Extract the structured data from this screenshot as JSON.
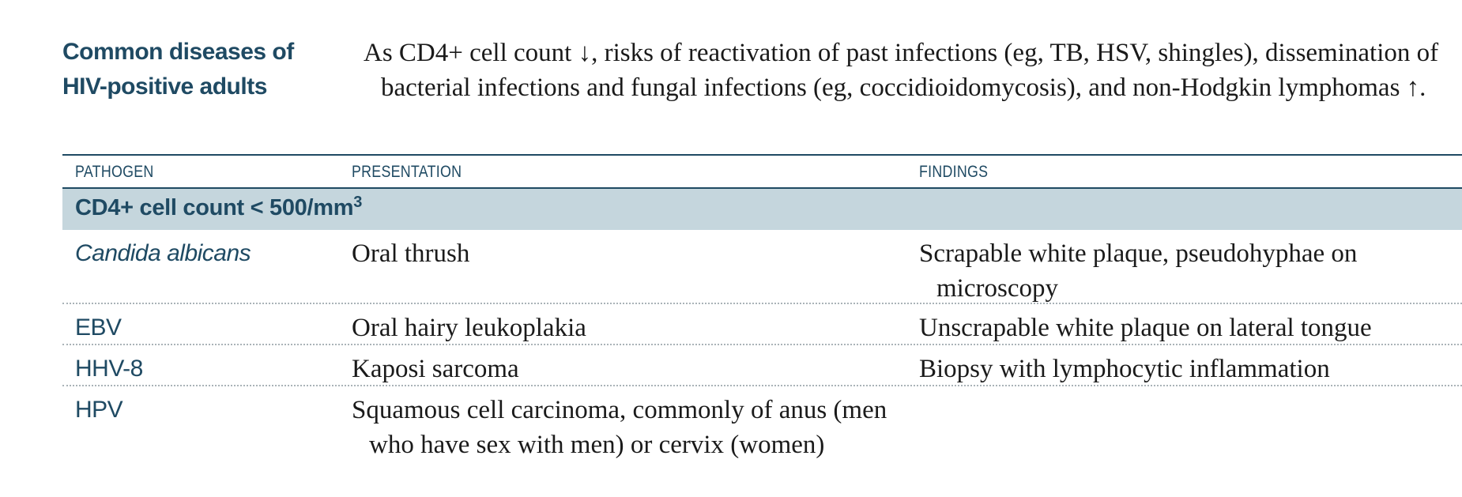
{
  "section": {
    "title": "Common diseases of HIV-positive adults",
    "intro": "As CD4+ cell count ↓, risks of reactivation of past infections (eg, TB, HSV, shingles), dissemination of bacterial infections and fungal infections (eg, coccidioidomycosis), and non-Hodgkin lymphomas ↑."
  },
  "table": {
    "headers": {
      "pathogen": "PATHOGEN",
      "presentation": "PRESENTATION",
      "findings": "FINDINGS"
    },
    "band": {
      "label": "CD4+ cell count < 500/mm",
      "superscript": "3"
    },
    "rows": [
      {
        "pathogen": "Candida albicans",
        "presentation": "Oral thrush",
        "findings": "Scrapable white plaque, pseudohyphae on microscopy"
      },
      {
        "pathogen": "EBV",
        "presentation": "Oral hairy leukoplakia",
        "findings": "Unscrapable white plaque on lateral tongue"
      },
      {
        "pathogen": "HHV-8",
        "presentation": "Kaposi sarcoma",
        "findings": "Biopsy with lymphocytic inflammation"
      },
      {
        "pathogen": "HPV",
        "presentation": "Squamous cell carcinoma, commonly of anus (men who have sex with men) or cervix (women)",
        "findings": ""
      }
    ]
  },
  "colors": {
    "heading": "#1f4a63",
    "band_background": "#c5d6dd",
    "divider": "#aab3b8"
  }
}
